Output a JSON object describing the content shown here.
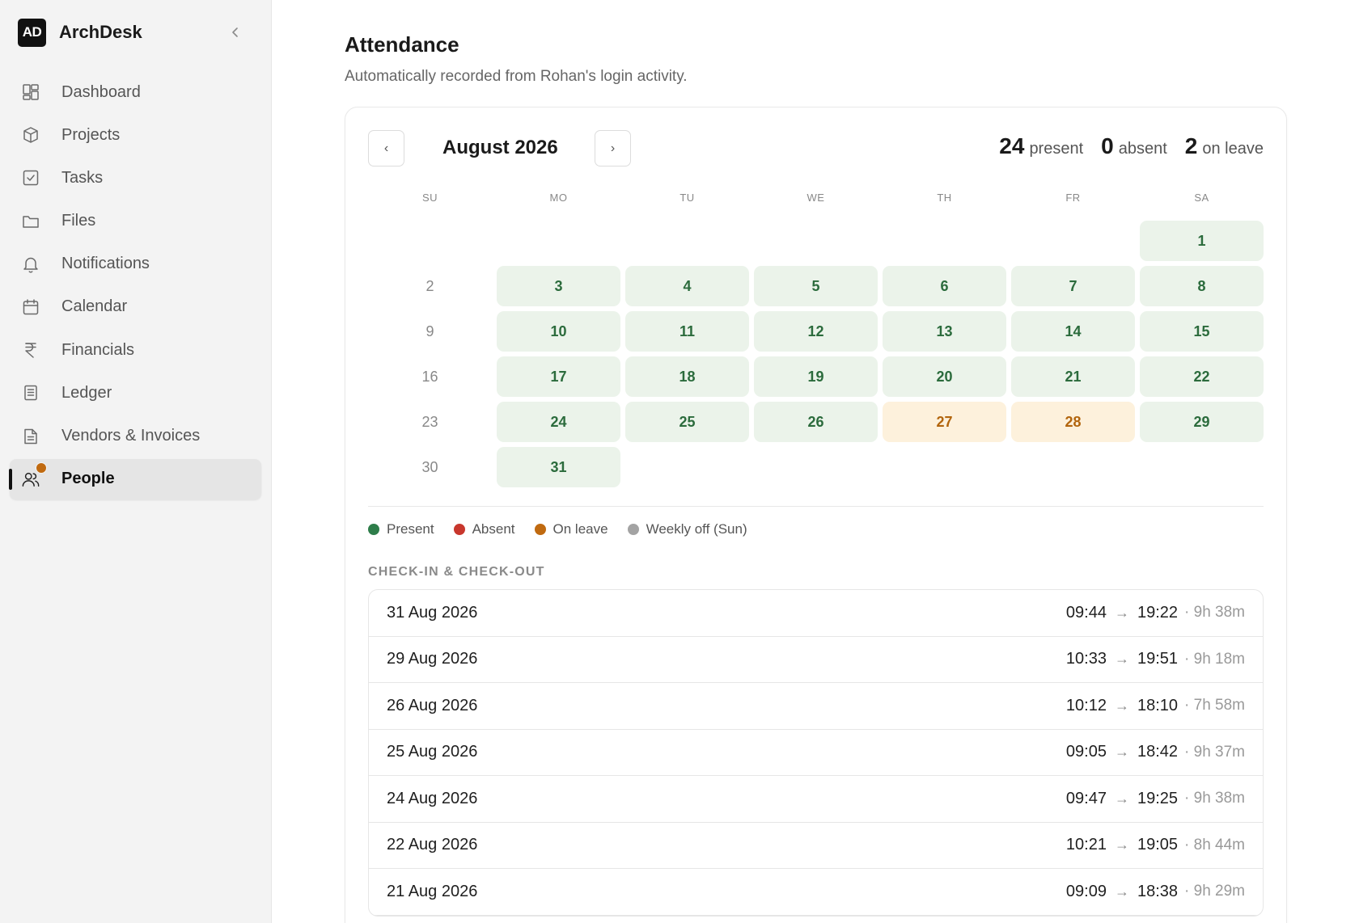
{
  "app": {
    "logo": "AD",
    "name": "ArchDesk",
    "collapse_icon": "chevron-left-icon"
  },
  "sidebar": {
    "items": [
      {
        "label": "Dashboard",
        "icon": "dashboard-icon"
      },
      {
        "label": "Projects",
        "icon": "box-icon"
      },
      {
        "label": "Tasks",
        "icon": "checkbox-icon"
      },
      {
        "label": "Files",
        "icon": "folder-icon"
      },
      {
        "label": "Notifications",
        "icon": "bell-icon"
      },
      {
        "label": "Calendar",
        "icon": "calendar-icon"
      },
      {
        "label": "Financials",
        "icon": "rupee-icon"
      },
      {
        "label": "Ledger",
        "icon": "ledger-icon"
      },
      {
        "label": "Vendors & Invoices",
        "icon": "invoice-icon"
      },
      {
        "label": "People",
        "icon": "people-icon",
        "active": true,
        "badge_color": "#c06a10"
      }
    ]
  },
  "page": {
    "title": "Attendance",
    "subtitle": "Automatically recorded from Rohan's login activity."
  },
  "calendar": {
    "prev_label": "‹",
    "next_label": "›",
    "month": "August 2026",
    "stats": {
      "present_count": "24",
      "present_label": "present",
      "absent_count": "0",
      "absent_label": "absent",
      "leave_count": "2",
      "leave_label": "on leave"
    },
    "weekdays": [
      "SU",
      "MO",
      "TU",
      "WE",
      "TH",
      "FR",
      "SA"
    ],
    "days": [
      {
        "day": "",
        "status": "empty"
      },
      {
        "day": "",
        "status": "empty"
      },
      {
        "day": "",
        "status": "empty"
      },
      {
        "day": "",
        "status": "empty"
      },
      {
        "day": "",
        "status": "empty"
      },
      {
        "day": "",
        "status": "empty"
      },
      {
        "day": "1",
        "status": "present"
      },
      {
        "day": "2",
        "status": "sun"
      },
      {
        "day": "3",
        "status": "present"
      },
      {
        "day": "4",
        "status": "present"
      },
      {
        "day": "5",
        "status": "present"
      },
      {
        "day": "6",
        "status": "present"
      },
      {
        "day": "7",
        "status": "present"
      },
      {
        "day": "8",
        "status": "present"
      },
      {
        "day": "9",
        "status": "sun"
      },
      {
        "day": "10",
        "status": "present"
      },
      {
        "day": "11",
        "status": "present"
      },
      {
        "day": "12",
        "status": "present"
      },
      {
        "day": "13",
        "status": "present"
      },
      {
        "day": "14",
        "status": "present"
      },
      {
        "day": "15",
        "status": "present"
      },
      {
        "day": "16",
        "status": "sun"
      },
      {
        "day": "17",
        "status": "present"
      },
      {
        "day": "18",
        "status": "present"
      },
      {
        "day": "19",
        "status": "present"
      },
      {
        "day": "20",
        "status": "present"
      },
      {
        "day": "21",
        "status": "present"
      },
      {
        "day": "22",
        "status": "present"
      },
      {
        "day": "23",
        "status": "sun"
      },
      {
        "day": "24",
        "status": "present"
      },
      {
        "day": "25",
        "status": "present"
      },
      {
        "day": "26",
        "status": "present"
      },
      {
        "day": "27",
        "status": "leave"
      },
      {
        "day": "28",
        "status": "leave"
      },
      {
        "day": "29",
        "status": "present"
      },
      {
        "day": "30",
        "status": "sun"
      },
      {
        "day": "31",
        "status": "present"
      }
    ],
    "legend": [
      {
        "label": "Present",
        "color": "#2e7d4a"
      },
      {
        "label": "Absent",
        "color": "#c8372d"
      },
      {
        "label": "On leave",
        "color": "#c06a10"
      },
      {
        "label": "Weekly off (Sun)",
        "color": "#a3a3a3"
      }
    ]
  },
  "checkins": {
    "title": "CHECK-IN & CHECK-OUT",
    "arrow": "→",
    "rows": [
      {
        "date": "31 Aug 2026",
        "in": "09:44",
        "out": "19:22",
        "duration": "· 9h 38m"
      },
      {
        "date": "29 Aug 2026",
        "in": "10:33",
        "out": "19:51",
        "duration": "· 9h 18m"
      },
      {
        "date": "26 Aug 2026",
        "in": "10:12",
        "out": "18:10",
        "duration": "· 7h 58m"
      },
      {
        "date": "25 Aug 2026",
        "in": "09:05",
        "out": "18:42",
        "duration": "· 9h 37m"
      },
      {
        "date": "24 Aug 2026",
        "in": "09:47",
        "out": "19:25",
        "duration": "· 9h 38m"
      },
      {
        "date": "22 Aug 2026",
        "in": "10:21",
        "out": "19:05",
        "duration": "· 8h 44m"
      },
      {
        "date": "21 Aug 2026",
        "in": "09:09",
        "out": "18:38",
        "duration": "· 9h 29m"
      }
    ]
  }
}
